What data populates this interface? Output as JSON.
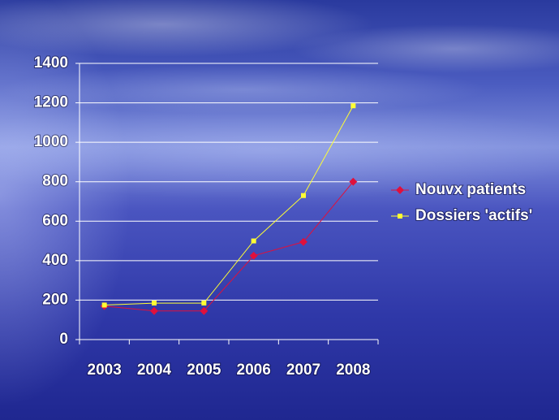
{
  "chart_data": {
    "type": "line",
    "categories": [
      "2003",
      "2004",
      "2005",
      "2006",
      "2007",
      "2008"
    ],
    "series": [
      {
        "name": "Nouvx patients",
        "color": "#e0103c",
        "values": [
          170,
          145,
          145,
          425,
          495,
          800
        ]
      },
      {
        "name": "Dossiers 'actifs'",
        "color": "#ffff33",
        "values": [
          175,
          185,
          185,
          500,
          730,
          1185
        ]
      }
    ],
    "ylim": [
      0,
      1400
    ],
    "yticks": [
      0,
      200,
      400,
      600,
      800,
      1000,
      1200,
      1400
    ],
    "grid": true,
    "legend": "right"
  }
}
